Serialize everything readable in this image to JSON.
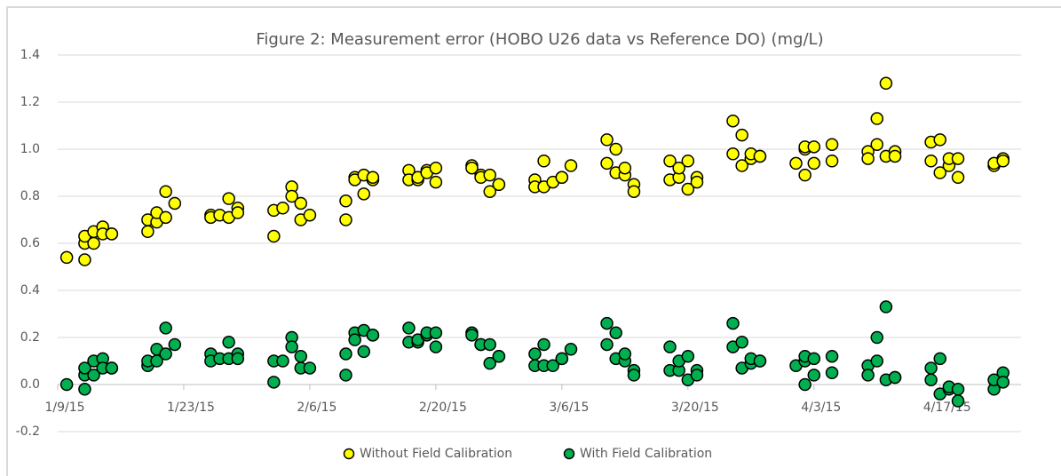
{
  "chart_data": {
    "type": "scatter",
    "title": "Figure 2: Measurement error (HOBO U26 data vs Reference DO) (mg/L)",
    "x": [
      "1/10/15",
      "1/12/15",
      "1/12/15",
      "1/12/15",
      "1/13/15",
      "1/13/15",
      "1/14/15",
      "1/14/15",
      "1/15/15",
      "1/15/15",
      "1/19/15",
      "1/19/15",
      "1/20/15",
      "1/20/15",
      "1/21/15",
      "1/21/15",
      "1/22/15",
      "1/26/15",
      "1/26/15",
      "1/27/15",
      "1/28/15",
      "1/28/15",
      "1/29/15",
      "1/29/15",
      "2/2/15",
      "2/2/15",
      "2/3/15",
      "2/4/15",
      "2/4/15",
      "2/5/15",
      "2/5/15",
      "2/6/15",
      "2/10/15",
      "2/10/15",
      "2/11/15",
      "2/11/15",
      "2/12/15",
      "2/12/15",
      "2/13/15",
      "2/13/15",
      "2/17/15",
      "2/17/15",
      "2/18/15",
      "2/18/15",
      "2/19/15",
      "2/19/15",
      "2/20/15",
      "2/20/15",
      "2/24/15",
      "2/24/15",
      "2/25/15",
      "2/25/15",
      "2/26/15",
      "2/26/15",
      "2/27/15",
      "2/27/15",
      "3/3/15",
      "3/3/15",
      "3/4/15",
      "3/4/15",
      "3/5/15",
      "3/6/15",
      "3/6/15",
      "3/7/15",
      "3/11/15",
      "3/11/15",
      "3/12/15",
      "3/12/15",
      "3/13/15",
      "3/13/15",
      "3/14/15",
      "3/14/15",
      "3/18/15",
      "3/18/15",
      "3/19/15",
      "3/19/15",
      "3/20/15",
      "3/20/15",
      "3/21/15",
      "3/21/15",
      "3/25/15",
      "3/25/15",
      "3/26/15",
      "3/26/15",
      "3/27/15",
      "3/27/15",
      "3/28/15",
      "3/28/15",
      "4/1/15",
      "4/2/15",
      "4/2/15",
      "4/2/15",
      "4/3/15",
      "4/3/15",
      "4/5/15",
      "4/5/15",
      "4/9/15",
      "4/9/15",
      "4/10/15",
      "4/10/15",
      "4/11/15",
      "4/11/15",
      "4/12/15",
      "4/12/15",
      "4/16/15",
      "4/16/15",
      "4/17/15",
      "4/17/15",
      "4/18/15",
      "4/18/15",
      "4/19/15",
      "4/19/15",
      "4/23/15",
      "4/23/15",
      "4/24/15",
      "4/24/15"
    ],
    "series": [
      {
        "name": "Without Field Calibration",
        "color": "#ffff00",
        "values": [
          0.54,
          0.53,
          0.6,
          0.63,
          0.65,
          0.6,
          0.67,
          0.64,
          0.64,
          0.64,
          0.65,
          0.7,
          0.69,
          0.73,
          0.82,
          0.71,
          0.77,
          0.72,
          0.71,
          0.72,
          0.71,
          0.79,
          0.75,
          0.73,
          0.63,
          0.74,
          0.75,
          0.84,
          0.8,
          0.7,
          0.77,
          0.72,
          0.78,
          0.7,
          0.88,
          0.87,
          0.81,
          0.89,
          0.87,
          0.88,
          0.91,
          0.87,
          0.87,
          0.88,
          0.91,
          0.9,
          0.86,
          0.92,
          0.93,
          0.92,
          0.89,
          0.88,
          0.89,
          0.82,
          0.85,
          0.85,
          0.87,
          0.84,
          0.84,
          0.95,
          0.86,
          0.88,
          0.88,
          0.93,
          1.04,
          0.94,
          1.0,
          0.9,
          0.89,
          0.92,
          0.85,
          0.82,
          0.95,
          0.87,
          0.88,
          0.92,
          0.95,
          0.83,
          0.88,
          0.86,
          0.98,
          1.12,
          0.93,
          1.06,
          0.96,
          0.98,
          0.97,
          0.97,
          0.94,
          1.0,
          1.01,
          0.89,
          0.94,
          1.01,
          1.02,
          0.95,
          0.99,
          0.96,
          1.02,
          1.13,
          1.28,
          0.97,
          0.99,
          0.97,
          1.03,
          0.95,
          1.04,
          0.9,
          0.93,
          0.96,
          0.96,
          0.88,
          0.93,
          0.94,
          0.96,
          0.95
        ]
      },
      {
        "name": "With Field Calibration",
        "color": "#00b050",
        "values": [
          0.0,
          -0.02,
          0.04,
          0.07,
          0.1,
          0.04,
          0.11,
          0.07,
          0.07,
          0.07,
          0.08,
          0.1,
          0.1,
          0.15,
          0.24,
          0.13,
          0.17,
          0.13,
          0.1,
          0.11,
          0.11,
          0.18,
          0.13,
          0.11,
          0.01,
          0.1,
          0.1,
          0.2,
          0.16,
          0.07,
          0.12,
          0.07,
          0.13,
          0.04,
          0.22,
          0.19,
          0.14,
          0.23,
          0.21,
          0.21,
          0.24,
          0.18,
          0.18,
          0.19,
          0.21,
          0.22,
          0.16,
          0.22,
          0.22,
          0.21,
          0.17,
          0.17,
          0.17,
          0.09,
          0.12,
          0.12,
          0.13,
          0.08,
          0.08,
          0.17,
          0.08,
          0.11,
          0.11,
          0.15,
          0.26,
          0.17,
          0.22,
          0.11,
          0.1,
          0.13,
          0.06,
          0.04,
          0.16,
          0.06,
          0.06,
          0.1,
          0.12,
          0.02,
          0.06,
          0.04,
          0.16,
          0.26,
          0.07,
          0.18,
          0.09,
          0.11,
          0.1,
          0.1,
          0.08,
          0.1,
          0.12,
          0.0,
          0.04,
          0.11,
          0.12,
          0.05,
          0.08,
          0.04,
          0.1,
          0.2,
          0.33,
          0.02,
          0.03,
          0.03,
          0.07,
          0.02,
          0.11,
          -0.04,
          -0.02,
          -0.01,
          -0.02,
          -0.07,
          -0.02,
          0.02,
          0.05,
          0.01
        ]
      }
    ],
    "xlim": [
      "1/9/15",
      "4/26/15"
    ],
    "xticks": [
      "1/9/15",
      "1/23/15",
      "2/6/15",
      "2/20/15",
      "3/6/15",
      "3/20/15",
      "4/3/15",
      "4/17/15"
    ],
    "ylim": [
      -0.2,
      1.4
    ],
    "yticks": [
      -0.2,
      {
        "value": 0,
        "label": "0.0"
      },
      0.2,
      0.4,
      0.6,
      0.8,
      {
        "value": 1,
        "label": "1.0"
      },
      1.2,
      1.4
    ],
    "grid": true,
    "legend": "bottom"
  }
}
